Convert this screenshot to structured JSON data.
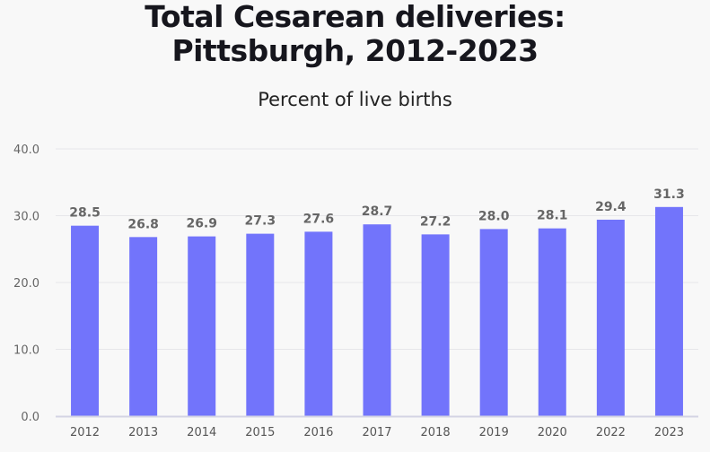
{
  "chart_data": {
    "type": "bar",
    "title": "Total Cesarean deliveries: Pittsburgh, 2012-2023",
    "title_lines": [
      "Total Cesarean deliveries:",
      "Pittsburgh, 2012-2023"
    ],
    "subtitle": "Percent of live births",
    "xlabel": "",
    "ylabel": "",
    "categories": [
      "2012",
      "2013",
      "2014",
      "2015",
      "2016",
      "2017",
      "2018",
      "2019",
      "2020",
      "2022",
      "2023"
    ],
    "values": [
      28.5,
      26.8,
      26.9,
      27.3,
      27.6,
      28.7,
      27.2,
      28.0,
      28.1,
      29.4,
      31.3
    ],
    "ylim": [
      0,
      40
    ],
    "yticks": [
      "0.0",
      "10.0",
      "20.0",
      "30.0",
      "40.0"
    ],
    "grid": true,
    "data_labels": true,
    "colors": {
      "bar": "#7274fb",
      "label": "#666666",
      "background": "#f8f8f8"
    }
  }
}
